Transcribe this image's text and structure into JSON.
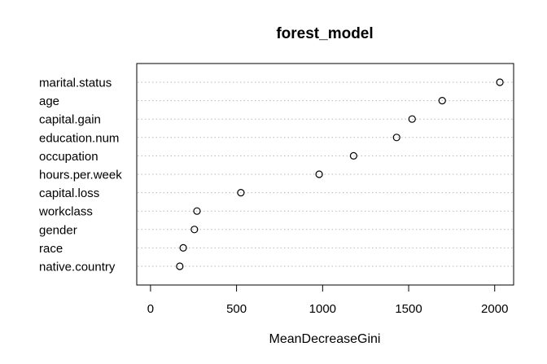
{
  "chart_data": {
    "type": "scatter",
    "title": "forest_model",
    "xlabel": "MeanDecreaseGini",
    "ylabel": "",
    "xlim": [
      -80,
      2110
    ],
    "xticks": [
      0,
      500,
      1000,
      1500,
      2000
    ],
    "grid": "dotted horizontal lines per category",
    "categories": [
      "marital.status",
      "age",
      "capital.gain",
      "education.num",
      "occupation",
      "hours.per.week",
      "capital.loss",
      "workclass",
      "gender",
      "race",
      "native.country"
    ],
    "values": [
      2030,
      1695,
      1520,
      1430,
      1180,
      980,
      525,
      270,
      255,
      190,
      170
    ]
  }
}
